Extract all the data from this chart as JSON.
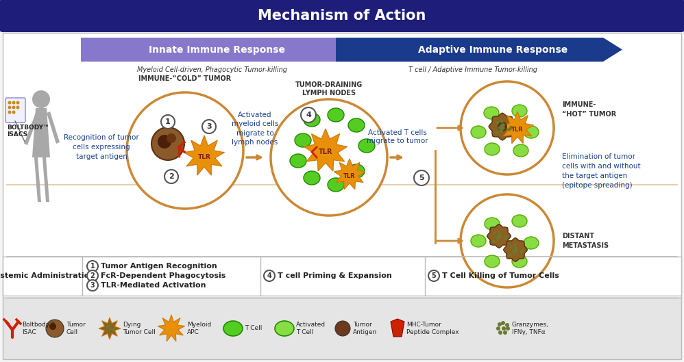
{
  "title": "Mechanism of Action",
  "title_bg_color": "#1e1e7a",
  "title_text_color": "#ffffff",
  "bg_color": "#f5f5f5",
  "content_bg": "#ffffff",
  "innate_label": "Innate Immune Response",
  "adaptive_label": "Adaptive Immune Response",
  "innate_sublabel": "Myeloid Cell-driven, Phagocytic Tumor-killing",
  "adaptive_sublabel": "T cell / Adaptive Immune Tumor-killing",
  "arrow_innate_color": "#8878cc",
  "arrow_adaptive_color": "#1a3a8c",
  "boltbody_label": "BOLTBODY™\nISACS",
  "cold_tumor_label": "IMMUNE-“COLD” TUMOR",
  "lymph_nodes_label": "TUMOR-DRAINING\nLYMPH NODES",
  "hot_tumor_label": "IMMUNE-\n“HOT” TUMOR",
  "distant_label": "DISTANT\nMETASTASIS",
  "recognition_text": "Recognition of tumor\ncells expressing\ntarget antigen",
  "activated_myeloid_text": "Activated\nmyeloid cells\nmigrate to\nlymph nodes",
  "activated_tcell_text": "Activated T cells\nmigrate to tumor",
  "elimination_text": "Elimination of tumor\ncells with and without\nthe target antigen\n(epitope spreading)",
  "step1_text": "Tumor Antigen Recognition",
  "step2_text": "FcR-Dependent Phagocytosis",
  "step3_text": "TLR-Mediated Activation",
  "step4_text": "T cell Priming & Expansion",
  "step5_text": "T Cell Killing of Tumor Cells",
  "systemic_label": "Systemic Administration",
  "border_sep_color": "#bbbbbb",
  "text_blue": "#1a4090",
  "text_dark": "#222222",
  "tumor_brown": "#8b5a2b",
  "tumor_dark": "#5c3010",
  "apc_orange": "#e8900a",
  "tcell_green": "#55cc22",
  "tcell_lgreen": "#88dd44",
  "dying_brown": "#8b6020",
  "granule_olive": "#6b7a30",
  "circle_border": "#cc8833",
  "footer_bg": "#e5e5e5"
}
